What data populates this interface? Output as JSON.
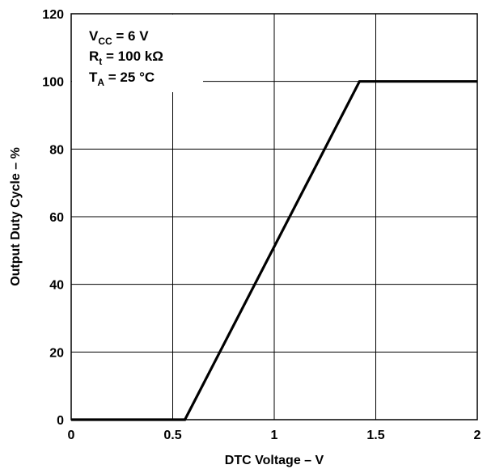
{
  "chart_data": {
    "type": "line",
    "title": "",
    "xlabel": "DTC Voltage – V",
    "ylabel": "Output Duty Cycle – %",
    "xlim": [
      0,
      2
    ],
    "ylim": [
      0,
      120
    ],
    "x_ticks": [
      0,
      0.5,
      1,
      1.5,
      2
    ],
    "x_tick_labels": [
      "0",
      "0.5",
      "1",
      "1.5",
      "2"
    ],
    "y_ticks": [
      0,
      20,
      40,
      60,
      80,
      100,
      120
    ],
    "y_tick_labels": [
      "0",
      "20",
      "40",
      "60",
      "80",
      "100",
      "120"
    ],
    "grid": true,
    "series": [
      {
        "x": [
          0,
          0.56,
          1.42,
          2.0
        ],
        "y": [
          0,
          0,
          100,
          100
        ]
      }
    ],
    "conditions": {
      "vcc": {
        "main": "V",
        "sub": "CC",
        "rest": " = 6 V"
      },
      "rt": {
        "main": "R",
        "sub": "t",
        "rest": " = 100 kΩ"
      },
      "ta": {
        "main": "T",
        "sub": "A",
        "rest": " = 25 °C"
      }
    },
    "colors": {
      "line": "#000000",
      "grid": "#000000",
      "background": "#ffffff"
    }
  }
}
